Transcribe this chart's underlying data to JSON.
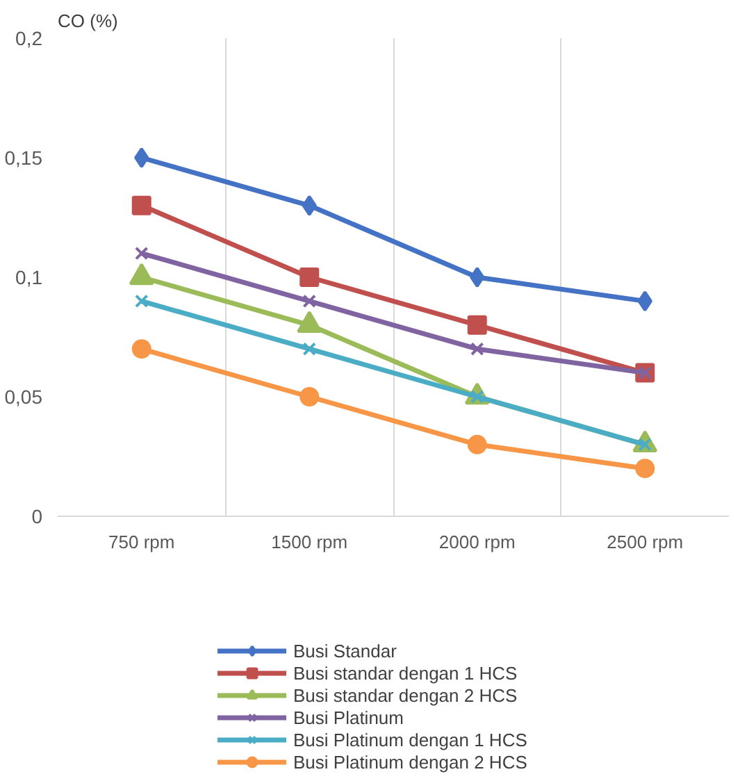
{
  "chart_data": {
    "type": "line",
    "ylabel": "CO (%)",
    "categories": [
      "750 rpm",
      "1500 rpm",
      "2000 rpm",
      "2500 rpm"
    ],
    "series": [
      {
        "name": "Busi Standar",
        "color": "#4472c4",
        "marker": "diamond",
        "values": [
          0.15,
          0.13,
          0.1,
          0.09
        ]
      },
      {
        "name": "Busi standar dengan 1 HCS",
        "color": "#c0504d",
        "marker": "square",
        "values": [
          0.13,
          0.1,
          0.08,
          0.06
        ]
      },
      {
        "name": "Busi standar dengan 2 HCS",
        "color": "#9bbb59",
        "marker": "triangle",
        "values": [
          0.1,
          0.08,
          0.05,
          0.03
        ]
      },
      {
        "name": "Busi Platinum",
        "color": "#8064a2",
        "marker": "cross",
        "values": [
          0.11,
          0.09,
          0.07,
          0.06
        ]
      },
      {
        "name": "Busi Platinum dengan 1 HCS",
        "color": "#4bacc6",
        "marker": "cross",
        "values": [
          0.09,
          0.07,
          0.05,
          0.03
        ]
      },
      {
        "name": "Busi Platinum dengan 2 HCS",
        "color": "#f79646",
        "marker": "circle",
        "values": [
          0.07,
          0.05,
          0.03,
          0.02
        ]
      }
    ],
    "ylim": [
      0,
      0.2
    ],
    "yticks": [
      {
        "value": 0,
        "label": "0"
      },
      {
        "value": 0.05,
        "label": "0,05"
      },
      {
        "value": 0.1,
        "label": "0,1"
      },
      {
        "value": 0.15,
        "label": "0,15"
      },
      {
        "value": 0.2,
        "label": "0,2"
      }
    ],
    "grid": "x",
    "legend": "bottom",
    "line_style": "solid"
  }
}
